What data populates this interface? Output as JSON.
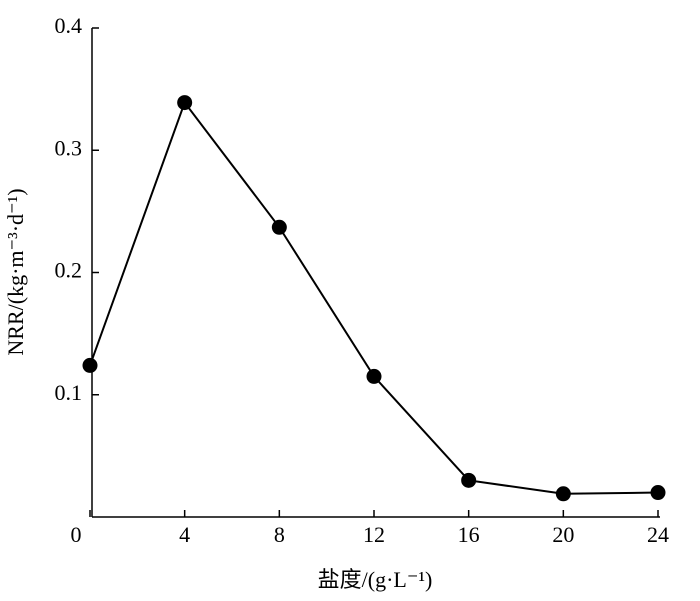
{
  "chart_data": {
    "type": "line",
    "x_label": "盐度/(g·L⁻¹)",
    "y_label": "NRR/(kg·m⁻³·d⁻¹)",
    "x": [
      0,
      4,
      8,
      12,
      16,
      20,
      24
    ],
    "series": [
      {
        "color": "#000000",
        "values": [
          0.124,
          0.339,
          0.237,
          0.115,
          0.03,
          0.019,
          0.02
        ]
      }
    ],
    "xlim": [
      0,
      24
    ],
    "xticks": [
      0,
      4,
      8,
      12,
      16,
      20,
      24
    ],
    "ylim": [
      0,
      0.4
    ],
    "yticks": [
      0.1,
      0.2,
      0.3,
      0.4
    ]
  }
}
